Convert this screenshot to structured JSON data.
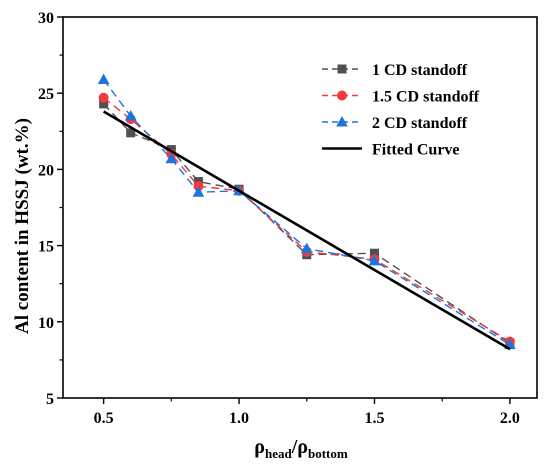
{
  "chart_data": {
    "type": "line",
    "xlabel": {
      "base": "ρ",
      "sub1": "head",
      "slash": "/",
      "base2": "ρ",
      "sub2": "bottom"
    },
    "ylabel": "Al content in HSSJ (wt.%)",
    "xlim": [
      0.35,
      2.1
    ],
    "ylim": [
      5,
      30
    ],
    "xticks": [
      "0.5",
      "1.0",
      "1.5",
      "2.0"
    ],
    "yticks": [
      "5",
      "10",
      "15",
      "20",
      "25",
      "30"
    ],
    "legend_position": "top-right",
    "series": [
      {
        "name": "1 CD standoff",
        "color": "#505050",
        "marker": "square",
        "dash": "dashed",
        "x": [
          0.5,
          0.6,
          0.75,
          0.85,
          1.0,
          1.25,
          1.5,
          2.0
        ],
        "y": [
          24.3,
          22.4,
          21.3,
          19.2,
          18.7,
          14.4,
          14.5,
          8.6
        ]
      },
      {
        "name": "1.5 CD standoff",
        "color": "#f03c3c",
        "marker": "circle",
        "dash": "dashed",
        "x": [
          0.5,
          0.6,
          0.75,
          0.85,
          1.0,
          1.25,
          1.5,
          2.0
        ],
        "y": [
          24.7,
          23.3,
          21.0,
          18.9,
          18.6,
          14.6,
          14.1,
          8.7
        ]
      },
      {
        "name": "2 CD standoff",
        "color": "#1e73dc",
        "marker": "triangle",
        "dash": "dashed",
        "x": [
          0.5,
          0.6,
          0.75,
          0.85,
          1.0,
          1.25,
          1.5,
          2.0
        ],
        "y": [
          25.9,
          23.5,
          20.7,
          18.5,
          18.6,
          14.8,
          14.0,
          8.5
        ]
      },
      {
        "name": "Fitted Curve",
        "color": "#000000",
        "marker": "none",
        "dash": "solid",
        "x": [
          0.5,
          2.0
        ],
        "y": [
          23.8,
          8.2
        ]
      }
    ]
  }
}
